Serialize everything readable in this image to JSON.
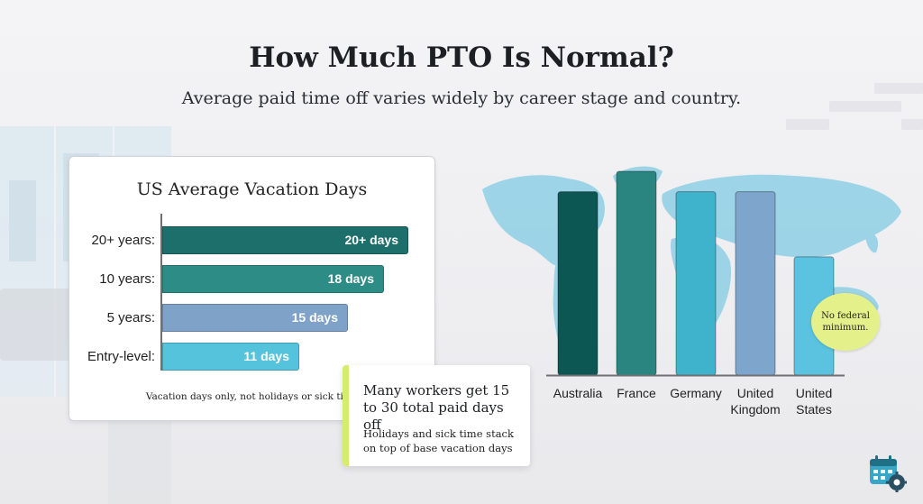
{
  "title": "How Much PTO Is Normal?",
  "subtitle": "Average paid time off varies widely by career stage and country.",
  "colors": {
    "teal_dark": "#1d6f6b",
    "teal": "#2e8c86",
    "slate_blue": "#7fa3c8",
    "cyan": "#56c3dc",
    "australia": "#0c5653",
    "france": "#2a8581",
    "germany": "#3fb3cc",
    "uk": "#7ea6cc",
    "us": "#5bc3df",
    "map": "#8ecfe4",
    "callout_accent": "#d6ec6c"
  },
  "us_chart": {
    "title": "US Average Vacation Days",
    "note": "Vacation days only, not holidays or sick time",
    "bars": [
      {
        "label": "20+ years:",
        "value": 20,
        "value_label": "20+ days"
      },
      {
        "label": "10 years:",
        "value": 18,
        "value_label": "18 days"
      },
      {
        "label": "5 years:",
        "value": 15,
        "value_label": "15 days"
      },
      {
        "label": "Entry-level:",
        "value": 11,
        "value_label": "11 days"
      }
    ]
  },
  "callout": {
    "main": "Many workers get 15 to 30 total paid days off",
    "sub": "Holidays and sick time stack on top of base vacation days"
  },
  "country_chart": {
    "categories": [
      "Australia",
      "France",
      "Germany",
      "United Kingdom",
      "United States"
    ],
    "label_lines": [
      [
        "Australia"
      ],
      [
        "France"
      ],
      [
        "Germany"
      ],
      [
        "United",
        "Kingdom"
      ],
      [
        "United",
        "States"
      ]
    ],
    "values": [
      0.9,
      1.0,
      0.9,
      0.9,
      0.58
    ]
  },
  "sticker": "No federal minimum.",
  "icon": "calendar-gear-icon",
  "chart_data": [
    {
      "type": "bar",
      "orientation": "horizontal",
      "title": "US Average Vacation Days",
      "categories": [
        "20+ years:",
        "10 years:",
        "5 years:",
        "Entry-level:"
      ],
      "values": [
        20,
        18,
        15,
        11
      ],
      "data_labels": [
        "20+ days",
        "18 days",
        "15 days",
        "11 days"
      ],
      "note": "Vacation days only, not holidays or sick time",
      "grid": false
    },
    {
      "type": "bar",
      "orientation": "vertical",
      "categories": [
        "Australia",
        "France",
        "Germany",
        "United Kingdom",
        "United States"
      ],
      "values": [
        0.9,
        1.0,
        0.9,
        0.9,
        0.58
      ],
      "value_scale": "relative (no axis shown)",
      "annotation": "No federal minimum.",
      "grid": false
    }
  ]
}
